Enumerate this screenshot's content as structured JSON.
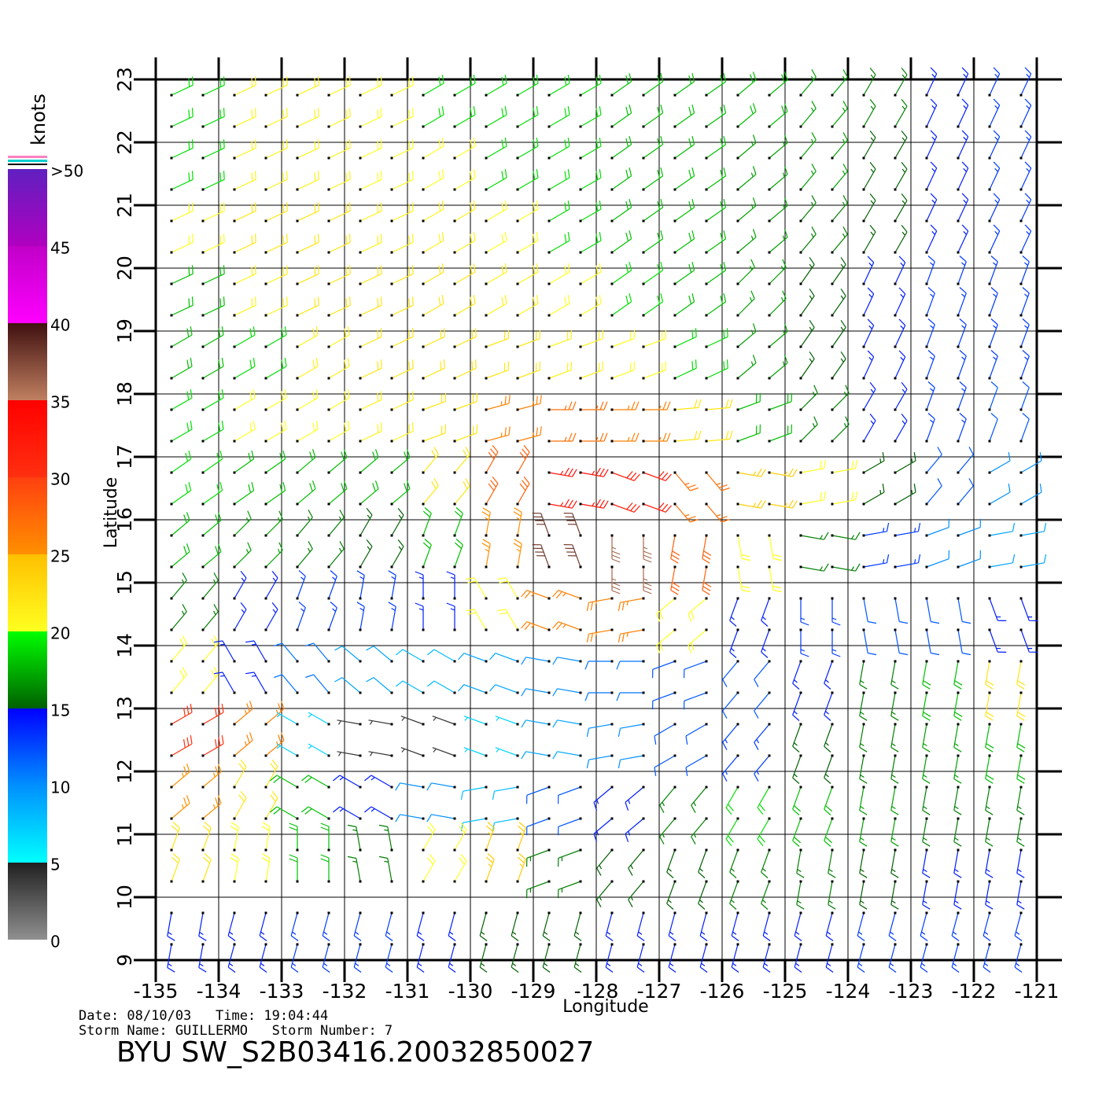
{
  "chart_data": {
    "type": "wind-barb",
    "title": "BYU SW_S2B03416.20032850027",
    "date_line": "Date: 08/10/03   Time: 19:04:44",
    "storm_line": "Storm Name: GUILLERMO   Storm Number: 7",
    "xlabel": "Longitude",
    "ylabel": "Latitude",
    "xlim": [
      -135,
      -121
    ],
    "ylim": [
      9,
      23
    ],
    "xticks": [
      -135,
      -134,
      -133,
      -132,
      -131,
      -130,
      -129,
      -128,
      -127,
      -126,
      -125,
      -124,
      -123,
      -122,
      -121
    ],
    "yticks": [
      9,
      10,
      11,
      12,
      13,
      14,
      15,
      16,
      17,
      18,
      19,
      20,
      21,
      22,
      23
    ],
    "grid": true,
    "lon": [
      -134.5,
      -133.5,
      -132.5,
      -131.5,
      -130.5,
      -129.5,
      -128.5,
      -127.5,
      -126.5,
      -125.5,
      -124.5,
      -123.5,
      -122.5,
      -121.5
    ],
    "lat": [
      22.5,
      21.5,
      20.5,
      19.5,
      18.5,
      17.5,
      16.5,
      15.5,
      14.5,
      13.5,
      12.5,
      11.5,
      10.5,
      9.5
    ],
    "speed": [
      [
        19,
        21,
        21,
        20,
        19,
        19,
        19,
        18,
        18,
        18,
        17,
        16,
        14,
        13
      ],
      [
        19,
        21,
        21,
        20,
        20,
        19,
        19,
        18,
        18,
        17,
        17,
        15,
        14,
        13
      ],
      [
        20,
        22,
        22,
        21,
        21,
        20,
        19,
        18,
        18,
        17,
        16,
        15,
        14,
        13
      ],
      [
        18,
        21,
        22,
        22,
        22,
        21,
        20,
        19,
        18,
        17,
        15,
        14,
        13,
        13
      ],
      [
        18,
        19,
        21,
        22,
        22,
        22,
        21,
        20,
        19,
        17,
        15,
        14,
        13,
        13
      ],
      [
        19,
        20,
        20,
        21,
        22,
        26,
        27,
        26,
        22,
        18,
        16,
        14,
        13,
        12
      ],
      [
        19,
        18,
        18,
        18,
        22,
        28,
        33,
        32,
        27,
        24,
        20,
        15,
        12,
        10
      ],
      [
        18,
        17,
        16,
        15,
        18,
        25,
        38,
        36,
        28,
        20,
        16,
        13,
        10,
        9
      ],
      [
        16,
        14,
        13,
        13,
        14,
        20,
        26,
        26,
        20,
        14,
        13,
        12,
        12,
        14
      ],
      [
        20,
        14,
        11,
        9,
        8,
        9,
        10,
        11,
        12,
        12,
        14,
        16,
        18,
        22
      ],
      [
        30,
        26,
        7,
        4,
        4,
        7,
        9,
        10,
        12,
        13,
        15,
        16,
        17,
        18
      ],
      [
        25,
        22,
        18,
        14,
        10,
        8,
        12,
        14,
        16,
        19,
        18,
        17,
        16,
        16
      ],
      [
        22,
        20,
        18,
        16,
        20,
        24,
        16,
        15,
        15,
        16,
        16,
        15,
        14,
        14
      ],
      [
        14,
        14,
        13,
        13,
        14,
        15,
        15,
        14,
        14,
        14,
        14,
        13,
        13,
        13
      ]
    ],
    "direction": [
      [
        65,
        65,
        65,
        65,
        60,
        60,
        60,
        55,
        55,
        50,
        40,
        30,
        25,
        25
      ],
      [
        65,
        65,
        65,
        65,
        60,
        60,
        60,
        55,
        55,
        50,
        40,
        30,
        25,
        25
      ],
      [
        65,
        65,
        65,
        65,
        60,
        60,
        60,
        55,
        55,
        50,
        40,
        30,
        25,
        25
      ],
      [
        65,
        65,
        65,
        65,
        60,
        60,
        60,
        55,
        55,
        45,
        35,
        25,
        20,
        20
      ],
      [
        60,
        60,
        60,
        65,
        65,
        70,
        70,
        70,
        65,
        50,
        35,
        25,
        20,
        20
      ],
      [
        60,
        60,
        60,
        65,
        70,
        75,
        90,
        90,
        85,
        70,
        45,
        30,
        20,
        20
      ],
      [
        55,
        55,
        50,
        50,
        40,
        30,
        100,
        110,
        140,
        100,
        80,
        60,
        40,
        60
      ],
      [
        50,
        45,
        40,
        30,
        20,
        10,
        340,
        180,
        190,
        170,
        100,
        80,
        70,
        80
      ],
      [
        40,
        30,
        20,
        10,
        360,
        330,
        290,
        260,
        230,
        200,
        180,
        170,
        170,
        160
      ],
      [
        40,
        330,
        320,
        310,
        300,
        290,
        280,
        270,
        250,
        220,
        200,
        190,
        190,
        190
      ],
      [
        60,
        50,
        300,
        280,
        290,
        290,
        280,
        260,
        240,
        220,
        200,
        190,
        190,
        190
      ],
      [
        50,
        30,
        300,
        300,
        280,
        260,
        250,
        230,
        220,
        210,
        200,
        190,
        190,
        190
      ],
      [
        20,
        10,
        360,
        350,
        30,
        20,
        250,
        220,
        200,
        200,
        190,
        190,
        190,
        190
      ],
      [
        190,
        195,
        195,
        195,
        195,
        195,
        195,
        195,
        195,
        195,
        195,
        195,
        195,
        195
      ]
    ],
    "colorbar": {
      "label": "knots",
      "ticks": [
        0,
        5,
        10,
        15,
        20,
        25,
        30,
        35,
        40,
        45,
        {
          "value": 50,
          "label": ">50"
        }
      ],
      "colors": [
        [
          "#909090",
          "#202020"
        ],
        [
          "#00ffff",
          "#0090ff"
        ],
        [
          "#0090ff",
          "#0000ff"
        ],
        [
          "#006000",
          "#00ff00"
        ],
        [
          "#ffff20",
          "#ffc000"
        ],
        [
          "#ff9000",
          "#ff4010"
        ],
        [
          "#ff3010",
          "#ff0000"
        ],
        [
          "#c08060",
          "#401010"
        ],
        [
          "#ff00ff",
          "#c000c8"
        ],
        [
          "#b000c0",
          "#6020c0"
        ]
      ]
    }
  }
}
